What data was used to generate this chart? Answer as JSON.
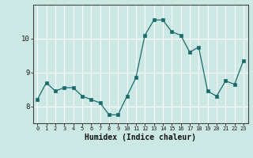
{
  "x": [
    0,
    1,
    2,
    3,
    4,
    5,
    6,
    7,
    8,
    9,
    10,
    11,
    12,
    13,
    14,
    15,
    16,
    17,
    18,
    19,
    20,
    21,
    22,
    23
  ],
  "y": [
    8.2,
    8.7,
    8.45,
    8.55,
    8.55,
    8.3,
    8.2,
    8.1,
    7.75,
    7.75,
    8.3,
    8.85,
    10.1,
    10.55,
    10.55,
    10.2,
    10.1,
    9.6,
    9.75,
    8.45,
    8.3,
    8.75,
    8.65,
    9.35
  ],
  "xlabel": "Humidex (Indice chaleur)",
  "bg_color": "#cce8e5",
  "line_color": "#1a6b6b",
  "marker_color": "#1a6b6b",
  "grid_color": "#ffffff",
  "ylim": [
    7.5,
    11.0
  ],
  "xlim": [
    -0.5,
    23.5
  ],
  "yticks": [
    8,
    9,
    10
  ],
  "xticks": [
    0,
    1,
    2,
    3,
    4,
    5,
    6,
    7,
    8,
    9,
    10,
    11,
    12,
    13,
    14,
    15,
    16,
    17,
    18,
    19,
    20,
    21,
    22,
    23
  ]
}
